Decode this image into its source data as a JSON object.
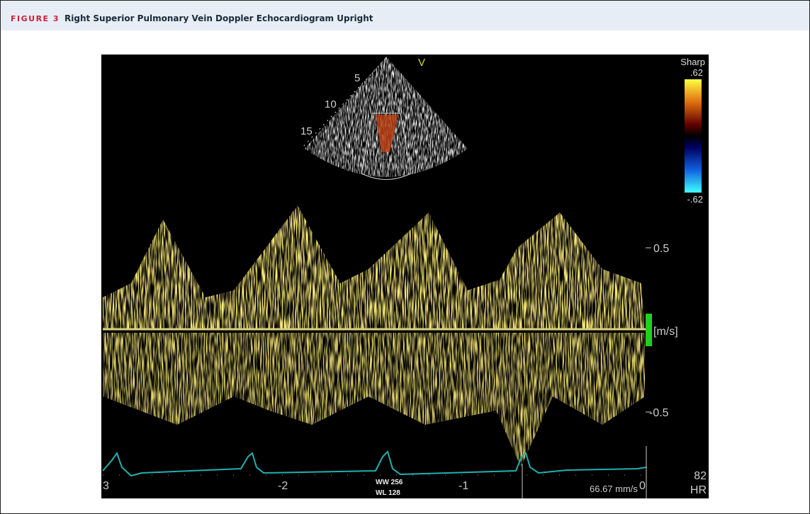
{
  "figure": {
    "label": "FIGURE 3",
    "title": "Right Superior Pulmonary Vein Doppler Echocardiogram Upright"
  },
  "image": {
    "orientation_marker": "V",
    "depth_labels": [
      "5",
      "10",
      "15"
    ],
    "color_map": {
      "name": "Sharp",
      "max": ".62",
      "min": "-.62"
    },
    "velocity_scale": {
      "upper": "0.5",
      "unit": "[m/s]",
      "lower": "-0.5"
    },
    "time_labels": [
      "3",
      "-2",
      "-1",
      "0"
    ],
    "window_width": "WW 256",
    "window_level": "WL 128",
    "sweep_speed": "66.67 mm/s",
    "heart_rate": "82",
    "heart_rate_label": "HR"
  }
}
